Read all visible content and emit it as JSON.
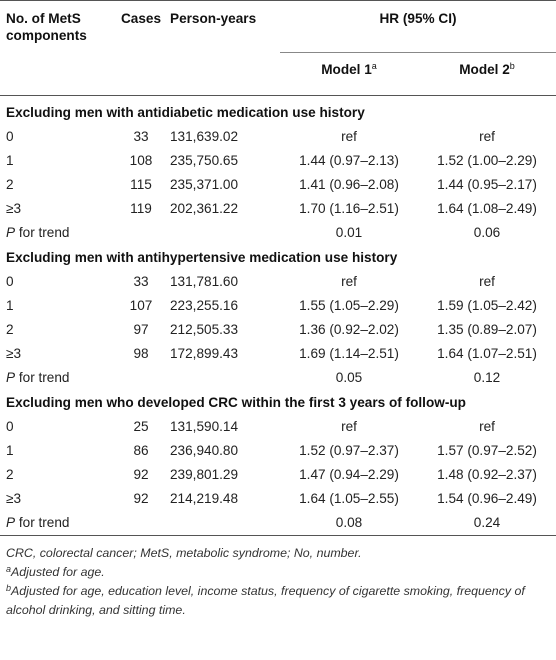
{
  "header": {
    "col_components": "No. of MetS components",
    "col_cases": "Cases",
    "col_person_years": "Person-years",
    "col_hr": "HR (95% CI)",
    "model1": "Model 1",
    "model1_sup": "a",
    "model2": "Model 2",
    "model2_sup": "b"
  },
  "sections": [
    {
      "title": "Excluding men with antidiabetic medication use history",
      "rows": [
        {
          "components": "0",
          "cases": "33",
          "py": "131,639.02",
          "m1": "ref",
          "m2": "ref"
        },
        {
          "components": "1",
          "cases": "108",
          "py": "235,750.65",
          "m1": "1.44 (0.97–2.13)",
          "m2": "1.52 (1.00–2.29)"
        },
        {
          "components": "2",
          "cases": "115",
          "py": "235,371.00",
          "m1": "1.41 (0.96–2.08)",
          "m2": "1.44 (0.95–2.17)"
        },
        {
          "components": "≥3",
          "cases": "119",
          "py": "202,361.22",
          "m1": "1.70 (1.16–2.51)",
          "m2": "1.64 (1.08–2.49)"
        }
      ],
      "trend": {
        "label_p": "P",
        "label_rest": " for trend",
        "m1": "0.01",
        "m2": "0.06"
      }
    },
    {
      "title": "Excluding men with antihypertensive medication use history",
      "rows": [
        {
          "components": "0",
          "cases": "33",
          "py": "131,781.60",
          "m1": "ref",
          "m2": "ref"
        },
        {
          "components": "1",
          "cases": "107",
          "py": "223,255.16",
          "m1": "1.55 (1.05–2.29)",
          "m2": "1.59 (1.05–2.42)"
        },
        {
          "components": "2",
          "cases": "97",
          "py": "212,505.33",
          "m1": "1.36 (0.92–2.02)",
          "m2": "1.35 (0.89–2.07)"
        },
        {
          "components": "≥3",
          "cases": "98",
          "py": "172,899.43",
          "m1": "1.69 (1.14–2.51)",
          "m2": "1.64 (1.07–2.51)"
        }
      ],
      "trend": {
        "label_p": "P",
        "label_rest": " for trend",
        "m1": "0.05",
        "m2": "0.12"
      }
    },
    {
      "title": "Excluding men who developed CRC within the first 3 years of follow-up",
      "rows": [
        {
          "components": "0",
          "cases": "25",
          "py": "131,590.14",
          "m1": "ref",
          "m2": "ref"
        },
        {
          "components": "1",
          "cases": "86",
          "py": "236,940.80",
          "m1": "1.52 (0.97–2.37)",
          "m2": "1.57 (0.97–2.52)"
        },
        {
          "components": "2",
          "cases": "92",
          "py": "239,801.29",
          "m1": "1.47 (0.94–2.29)",
          "m2": "1.48 (0.92–2.37)"
        },
        {
          "components": "≥3",
          "cases": "92",
          "py": "214,219.48",
          "m1": "1.64 (1.05–2.55)",
          "m2": "1.54 (0.96–2.49)"
        }
      ],
      "trend": {
        "label_p": "P",
        "label_rest": " for trend",
        "m1": "0.08",
        "m2": "0.24"
      }
    }
  ],
  "footnotes": {
    "abbrev": "CRC, colorectal cancer; MetS, metabolic syndrome; No, number.",
    "a_sup": "a",
    "a_text": "Adjusted for age.",
    "b_sup": "b",
    "b_text": "Adjusted for age, education level, income status, frequency of cigarette smoking, frequency of alcohol drinking, and sitting time."
  }
}
